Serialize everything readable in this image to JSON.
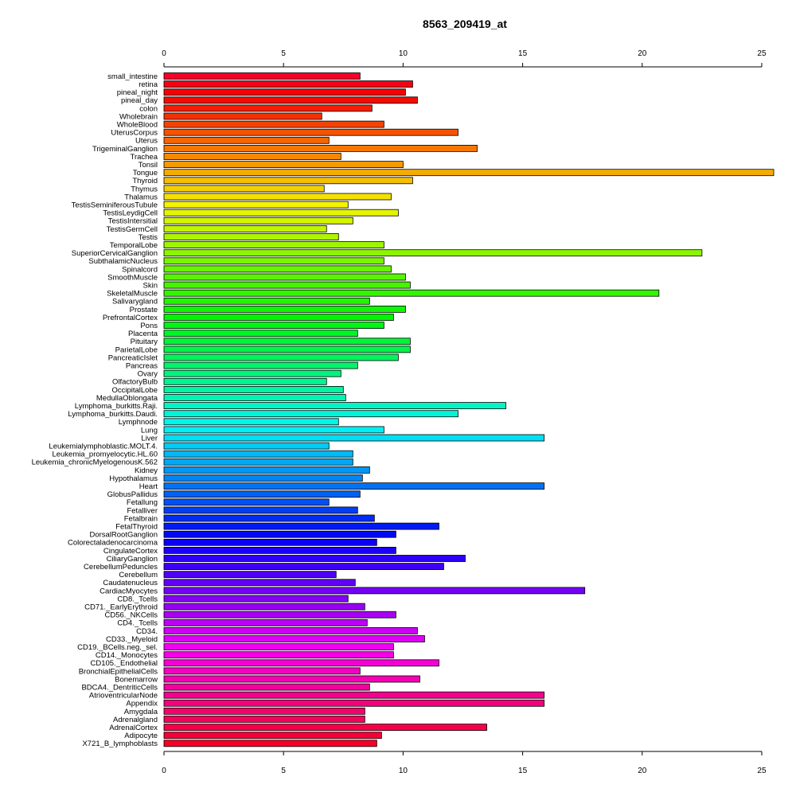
{
  "chart_data": {
    "type": "bar",
    "orientation": "horizontal",
    "title": "8563_209419_at",
    "xlabel": "",
    "ylabel": "",
    "xlim": [
      0,
      25.5
    ],
    "x_ticks": [
      0,
      5,
      10,
      15,
      20,
      25
    ],
    "x_tick_labels": [
      "0",
      "5",
      "10",
      "15",
      "20",
      "25"
    ],
    "grid": false,
    "legend": "none",
    "categories": [
      "small_intestine",
      "retina",
      "pineal_night",
      "pineal_day",
      "colon",
      "Wholebrain",
      "WholeBlood",
      "UterusCorpus",
      "Uterus",
      "TrigeminalGanglion",
      "Trachea",
      "Tonsil",
      "Tongue",
      "Thyroid",
      "Thymus",
      "Thalamus",
      "TestisSeminiferousTubule",
      "TestisLeydigCell",
      "TestisIntersitial",
      "TestisGermCell",
      "Testis",
      "TemporalLobe",
      "SuperiorCervicalGanglion",
      "SubthalamicNucleus",
      "Spinalcord",
      "SmoothMuscle",
      "Skin",
      "SkeletalMuscle",
      "Salivarygland",
      "Prostate",
      "PrefrontalCortex",
      "Pons",
      "Placenta",
      "Pituitary",
      "ParietalLobe",
      "PancreaticIslet",
      "Pancreas",
      "Ovary",
      "OlfactoryBulb",
      "OccipitalLobe",
      "MedullaOblongata",
      "Lymphoma_burkitts.Raji.",
      "Lymphoma_burkitts.Daudi.",
      "Lymphnode",
      "Lung",
      "Liver",
      "Leukemialymphoblastic.MOLT.4.",
      "Leukemia_promyelocytic.HL.60",
      "Leukemia_chronicMyelogenousK.562",
      "Kidney",
      "Hypothalamus",
      "Heart",
      "GlobusPallidus",
      "Fetallung",
      "Fetalliver",
      "Fetalbrain",
      "FetalThyroid",
      "DorsalRootGanglion",
      "Colorectaladenocarcinoma",
      "CingulateCortex",
      "CiliaryGanglion",
      "CerebellumPeduncles",
      "Cerebellum",
      "Caudatenucleus",
      "CardiacMyocytes",
      "CD8._Tcells",
      "CD71._EarlyErythroid",
      "CD56._NKCells",
      "CD4._Tcells",
      "CD34.",
      "CD33._Myeloid",
      "CD19._BCells.neg._sel.",
      "CD14._Monocytes",
      "CD105._Endothelial",
      "BronchialEpithelialCells",
      "Bonemarrow",
      "BDCA4._DentriticCells",
      "AtrioventricularNode",
      "Appendix",
      "Amygdala",
      "Adrenalgland",
      "AdrenalCortex",
      "Adipocyte",
      "X721_B_lymphoblasts"
    ],
    "values": [
      8.2,
      10.4,
      10.1,
      10.6,
      8.7,
      6.6,
      9.2,
      12.3,
      6.9,
      13.1,
      7.4,
      10.0,
      25.5,
      10.4,
      6.7,
      9.5,
      7.7,
      9.8,
      7.9,
      6.8,
      7.3,
      9.2,
      22.5,
      9.2,
      9.5,
      10.1,
      10.3,
      20.7,
      8.6,
      10.1,
      9.6,
      9.2,
      8.1,
      10.3,
      10.3,
      9.8,
      8.1,
      7.4,
      6.8,
      7.5,
      7.6,
      14.3,
      12.3,
      7.3,
      9.2,
      15.9,
      6.9,
      7.9,
      7.9,
      8.6,
      8.3,
      15.9,
      8.2,
      6.9,
      8.1,
      8.8,
      11.5,
      9.7,
      8.9,
      9.7,
      12.6,
      11.7,
      7.2,
      8.0,
      17.6,
      7.7,
      8.4,
      9.7,
      8.5,
      10.6,
      10.9,
      9.6,
      9.6,
      11.5,
      8.2,
      10.7,
      8.6,
      15.9,
      15.9,
      8.4,
      8.4,
      13.5,
      9.1,
      8.9
    ],
    "color_scheme": "rainbow gradient from red (top) through magenta, blue, cyan, green, yellow, orange back to red (bottom)"
  }
}
